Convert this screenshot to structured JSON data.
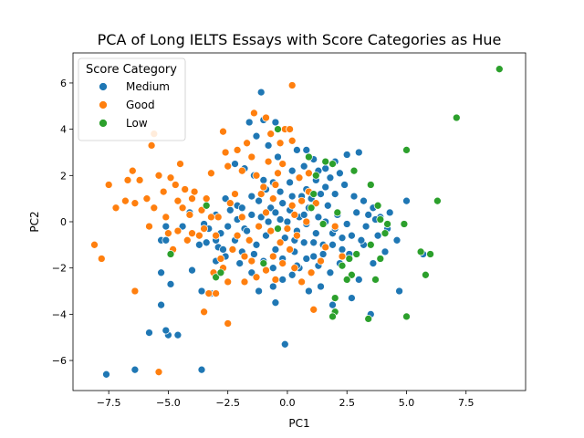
{
  "chart_data": {
    "type": "scatter",
    "title": "PCA of Long IELTS Essays with Score Categories as Hue",
    "xlabel": "PC1",
    "ylabel": "PC2",
    "xlim": [
      -9.0,
      10.0
    ],
    "ylim": [
      -7.3,
      7.3
    ],
    "xticks": [
      -7.5,
      -5.0,
      -2.5,
      0.0,
      2.5,
      5.0,
      7.5
    ],
    "xtick_labels": [
      "−7.5",
      "−5.0",
      "−2.5",
      "0.0",
      "2.5",
      "5.0",
      "7.5"
    ],
    "yticks": [
      -6,
      -4,
      -2,
      0,
      2,
      4,
      6
    ],
    "ytick_labels": [
      "−6",
      "−4",
      "−2",
      "0",
      "2",
      "4",
      "6"
    ],
    "grid": false,
    "legend": {
      "title": "Score Category",
      "placement": "top-left",
      "entries": [
        "Medium",
        "Good",
        "Low"
      ]
    },
    "series": [
      {
        "name": "Medium",
        "color": "#1f77b4",
        "points": [
          [
            -7.6,
            -6.6
          ],
          [
            -6.4,
            -6.4
          ],
          [
            -3.6,
            -6.4
          ],
          [
            -5.0,
            -4.9
          ],
          [
            -4.6,
            -4.9
          ],
          [
            -5.1,
            -4.7
          ],
          [
            -5.8,
            -4.8
          ],
          [
            -5.3,
            -3.6
          ],
          [
            -3.6,
            -3.0
          ],
          [
            -3.2,
            -3.1
          ],
          [
            -0.1,
            -5.3
          ],
          [
            -4.9,
            -2.7
          ],
          [
            -5.3,
            -2.2
          ],
          [
            -4.0,
            -2.1
          ],
          [
            -3.0,
            -1.7
          ],
          [
            -2.9,
            -1.1
          ],
          [
            -2.6,
            -1.5
          ],
          [
            -2.0,
            -1.8
          ],
          [
            -1.9,
            -1.3
          ],
          [
            -1.5,
            -2.2
          ],
          [
            -1.2,
            -3.0
          ],
          [
            -0.6,
            -2.8
          ],
          [
            -0.5,
            -3.5
          ],
          [
            -0.2,
            -2.5
          ],
          [
            0.2,
            -2.3
          ],
          [
            0.5,
            -2.0
          ],
          [
            0.9,
            -3.0
          ],
          [
            1.4,
            -2.8
          ],
          [
            1.9,
            -3.6
          ],
          [
            2.7,
            -3.3
          ],
          [
            3.0,
            -2.5
          ],
          [
            3.5,
            -4.0
          ],
          [
            4.7,
            -3.0
          ],
          [
            5.0,
            0.9
          ],
          [
            5.7,
            -1.4
          ],
          [
            3.0,
            3.0
          ],
          [
            2.5,
            2.9
          ],
          [
            2.0,
            2.6
          ],
          [
            1.6,
            2.3
          ],
          [
            1.1,
            2.7
          ],
          [
            0.8,
            3.1
          ],
          [
            0.4,
            3.1
          ],
          [
            -0.4,
            2.8
          ],
          [
            -0.8,
            3.3
          ],
          [
            -1.3,
            3.7
          ],
          [
            -1.1,
            5.6
          ],
          [
            -1.6,
            4.3
          ],
          [
            -1.0,
            4.4
          ],
          [
            -0.5,
            4.3
          ],
          [
            -2.2,
            2.5
          ],
          [
            -1.8,
            2.3
          ],
          [
            -1.4,
            2.0
          ],
          [
            -2.6,
            1.0
          ],
          [
            -2.1,
            0.7
          ],
          [
            -3.0,
            0.3
          ],
          [
            -3.3,
            -0.3
          ],
          [
            -3.4,
            -0.9
          ],
          [
            -3.7,
            -1.0
          ],
          [
            -5.3,
            -0.8
          ],
          [
            -5.1,
            -0.8
          ],
          [
            -5.1,
            -0.2
          ],
          [
            -4.4,
            -0.2
          ],
          [
            -4.1,
            0.4
          ],
          [
            -3.5,
            -0.1
          ],
          [
            -2.8,
            -0.5
          ],
          [
            -2.2,
            -0.8
          ],
          [
            -1.8,
            -0.3
          ],
          [
            -1.5,
            0.3
          ],
          [
            -1.2,
            0.9
          ],
          [
            -0.9,
            1.4
          ],
          [
            -0.6,
            1.7
          ],
          [
            -0.3,
            1.3
          ],
          [
            0.1,
            1.7
          ],
          [
            0.5,
            1.9
          ],
          [
            0.8,
            1.4
          ],
          [
            1.2,
            1.8
          ],
          [
            1.6,
            1.5
          ],
          [
            2.0,
            1.2
          ],
          [
            2.4,
            1.6
          ],
          [
            2.8,
            1.1
          ],
          [
            3.2,
            0.9
          ],
          [
            3.6,
            0.6
          ],
          [
            3.9,
            0.2
          ],
          [
            4.2,
            -0.3
          ],
          [
            4.6,
            -0.8
          ],
          [
            4.1,
            -1.3
          ],
          [
            3.6,
            -1.8
          ],
          [
            3.2,
            -1.0
          ],
          [
            2.7,
            -0.6
          ],
          [
            2.3,
            -1.2
          ],
          [
            1.9,
            -0.5
          ],
          [
            1.5,
            -1.0
          ],
          [
            1.1,
            -1.5
          ],
          [
            0.7,
            -0.9
          ],
          [
            0.3,
            -1.3
          ],
          [
            -0.1,
            -0.7
          ],
          [
            -0.5,
            -1.2
          ],
          [
            -0.9,
            -0.6
          ],
          [
            -1.3,
            -1.0
          ],
          [
            -1.7,
            -0.4
          ],
          [
            -2.1,
            0.1
          ],
          [
            -1.9,
            0.6
          ],
          [
            -1.5,
            1.1
          ],
          [
            -1.1,
            0.2
          ],
          [
            -0.7,
            0.6
          ],
          [
            -0.3,
            0.1
          ],
          [
            0.1,
            0.5
          ],
          [
            0.5,
            0.2
          ],
          [
            0.9,
            0.6
          ],
          [
            1.3,
            0.2
          ],
          [
            1.7,
            0.7
          ],
          [
            2.1,
            0.3
          ],
          [
            2.5,
            -0.1
          ],
          [
            2.9,
            0.4
          ],
          [
            3.3,
            -0.2
          ],
          [
            3.7,
            0.1
          ],
          [
            3.1,
            -0.8
          ],
          [
            2.6,
            -1.4
          ],
          [
            2.2,
            -1.8
          ],
          [
            1.8,
            -2.2
          ],
          [
            1.3,
            -1.9
          ],
          [
            0.8,
            -1.6
          ],
          [
            0.4,
            -1.9
          ],
          [
            -0.2,
            -1.6
          ],
          [
            -0.6,
            -2.0
          ],
          [
            -1.0,
            -1.7
          ],
          [
            -1.4,
            -1.4
          ],
          [
            -0.8,
            0.0
          ],
          [
            -0.4,
            -0.3
          ],
          [
            0.0,
            0.0
          ],
          [
            0.4,
            -0.4
          ],
          [
            0.8,
            -0.1
          ],
          [
            1.2,
            -0.5
          ],
          [
            1.6,
            0.0
          ],
          [
            2.0,
            -0.3
          ],
          [
            0.2,
            1.1
          ],
          [
            -0.2,
            0.8
          ],
          [
            0.6,
            1.1
          ],
          [
            1.0,
            1.0
          ],
          [
            1.4,
            1.2
          ],
          [
            -0.5,
            0.4
          ],
          [
            0.3,
            -0.8
          ],
          [
            0.7,
            0.3
          ],
          [
            1.1,
            -0.9
          ],
          [
            1.5,
            -1.4
          ],
          [
            1.9,
            -1.0
          ],
          [
            2.3,
            -0.7
          ],
          [
            -1.0,
            1.8
          ],
          [
            -0.4,
            2.1
          ],
          [
            0.2,
            2.2
          ],
          [
            0.7,
            2.4
          ],
          [
            1.3,
            2.2
          ],
          [
            1.8,
            1.9
          ],
          [
            2.2,
            2.1
          ],
          [
            -2.5,
            -0.2
          ],
          [
            -2.4,
            0.5
          ],
          [
            -3.0,
            -0.8
          ],
          [
            -2.7,
            -1.2
          ],
          [
            3.4,
            0.3
          ],
          [
            3.8,
            -0.6
          ],
          [
            4.3,
            0.4
          ]
        ]
      },
      {
        "name": "Good",
        "color": "#ff7f0e",
        "points": [
          [
            -8.1,
            -1.0
          ],
          [
            -7.8,
            -1.6
          ],
          [
            -7.5,
            1.6
          ],
          [
            -7.2,
            0.6
          ],
          [
            -6.8,
            0.9
          ],
          [
            -6.5,
            2.2
          ],
          [
            -6.4,
            0.8
          ],
          [
            -6.4,
            -3.0
          ],
          [
            -6.2,
            1.8
          ],
          [
            -5.9,
            1.0
          ],
          [
            -5.8,
            -0.2
          ],
          [
            -5.6,
            3.8
          ],
          [
            -5.7,
            3.3
          ],
          [
            -5.4,
            2.0
          ],
          [
            -5.2,
            1.3
          ],
          [
            -5.1,
            0.2
          ],
          [
            -4.9,
            1.9
          ],
          [
            -4.7,
            1.6
          ],
          [
            -4.6,
            0.9
          ],
          [
            -4.5,
            2.5
          ],
          [
            -4.3,
            1.4
          ],
          [
            -4.1,
            0.3
          ],
          [
            -4.0,
            -0.5
          ],
          [
            -4.8,
            -1.2
          ],
          [
            -4.6,
            -0.4
          ],
          [
            -4.4,
            0.6
          ],
          [
            -3.9,
            1.3
          ],
          [
            -3.7,
            -0.6
          ],
          [
            -3.5,
            -0.3
          ],
          [
            -3.4,
            1.0
          ],
          [
            -3.2,
            0.2
          ],
          [
            -3.0,
            -0.6
          ],
          [
            -3.3,
            -3.1
          ],
          [
            -3.0,
            -3.1
          ],
          [
            -3.5,
            -3.9
          ],
          [
            -2.5,
            -4.4
          ],
          [
            -2.7,
            -2.0
          ],
          [
            -3.1,
            -2.2
          ],
          [
            -2.3,
            -1.2
          ],
          [
            -2.1,
            -0.6
          ],
          [
            -1.9,
            0.2
          ],
          [
            -2.4,
            0.8
          ],
          [
            -2.9,
            0.2
          ],
          [
            -3.2,
            2.1
          ],
          [
            -2.6,
            3.0
          ],
          [
            -2.1,
            3.1
          ],
          [
            -2.5,
            2.4
          ],
          [
            -1.7,
            3.4
          ],
          [
            -1.5,
            2.8
          ],
          [
            -1.3,
            2.0
          ],
          [
            -1.0,
            1.5
          ],
          [
            -0.8,
            2.6
          ],
          [
            -1.4,
            4.7
          ],
          [
            -0.9,
            4.5
          ],
          [
            -0.7,
            3.8
          ],
          [
            -0.3,
            3.4
          ],
          [
            -0.1,
            4.0
          ],
          [
            0.1,
            4.0
          ],
          [
            0.2,
            3.5
          ],
          [
            0.2,
            5.9
          ],
          [
            -0.4,
            2.1
          ],
          [
            -0.6,
            1.0
          ],
          [
            -0.9,
            0.4
          ],
          [
            -1.2,
            -0.2
          ],
          [
            -1.6,
            -0.8
          ],
          [
            -1.8,
            -1.5
          ],
          [
            -1.3,
            -2.4
          ],
          [
            -0.9,
            -2.1
          ],
          [
            -0.6,
            -1.5
          ],
          [
            -0.3,
            -0.9
          ],
          [
            0.0,
            -0.3
          ],
          [
            0.3,
            0.3
          ],
          [
            0.6,
            0.9
          ],
          [
            0.9,
            1.3
          ],
          [
            1.2,
            0.8
          ],
          [
            0.8,
            0.0
          ],
          [
            0.4,
            -0.6
          ],
          [
            0.1,
            -1.2
          ],
          [
            -0.2,
            -1.8
          ],
          [
            -0.5,
            -2.5
          ],
          [
            0.3,
            -2.0
          ],
          [
            0.6,
            -2.6
          ],
          [
            1.0,
            -2.2
          ],
          [
            1.4,
            -1.7
          ],
          [
            1.1,
            -3.8
          ],
          [
            1.6,
            -1.1
          ],
          [
            2.0,
            -0.2
          ],
          [
            2.3,
            -1.5
          ],
          [
            -2.7,
            3.9
          ],
          [
            -5.4,
            -6.5
          ],
          [
            -5.0,
            -0.5
          ],
          [
            -4.2,
            -0.8
          ],
          [
            -4.0,
            1.0
          ],
          [
            -3.6,
            0.5
          ],
          [
            -2.2,
            1.2
          ],
          [
            -1.9,
            2.2
          ],
          [
            -1.1,
            1.2
          ],
          [
            -0.5,
            1.6
          ],
          [
            -0.2,
            2.5
          ],
          [
            0.5,
            1.9
          ],
          [
            0.9,
            2.1
          ],
          [
            -2.8,
            -1.6
          ],
          [
            -1.5,
            -1.7
          ],
          [
            -0.7,
            -0.4
          ],
          [
            0.2,
            0.7
          ],
          [
            -2.5,
            -2.6
          ],
          [
            -1.8,
            -2.6
          ],
          [
            -5.6,
            0.6
          ],
          [
            -6.7,
            1.8
          ]
        ]
      },
      {
        "name": "Low",
        "color": "#2ca02c",
        "points": [
          [
            8.9,
            6.6
          ],
          [
            7.1,
            4.5
          ],
          [
            5.0,
            3.1
          ],
          [
            6.3,
            0.9
          ],
          [
            4.9,
            -0.1
          ],
          [
            3.8,
            0.7
          ],
          [
            3.9,
            0.1
          ],
          [
            4.2,
            -0.1
          ],
          [
            4.1,
            -0.5
          ],
          [
            3.5,
            -1.0
          ],
          [
            2.9,
            -1.4
          ],
          [
            2.6,
            -1.6
          ],
          [
            2.3,
            -1.9
          ],
          [
            2.7,
            -2.3
          ],
          [
            2.5,
            -2.5
          ],
          [
            2.0,
            -3.3
          ],
          [
            2.0,
            -3.9
          ],
          [
            1.9,
            -4.1
          ],
          [
            3.4,
            -4.2
          ],
          [
            5.0,
            -4.1
          ],
          [
            3.7,
            -2.5
          ],
          [
            5.6,
            -1.3
          ],
          [
            6.0,
            -1.4
          ],
          [
            5.8,
            -2.3
          ],
          [
            3.9,
            -1.6
          ],
          [
            3.5,
            1.6
          ],
          [
            2.8,
            2.2
          ],
          [
            1.9,
            2.5
          ],
          [
            1.6,
            2.6
          ],
          [
            1.2,
            2.0
          ],
          [
            0.9,
            2.8
          ],
          [
            1.1,
            1.2
          ],
          [
            1.0,
            0.6
          ],
          [
            2.1,
            0.4
          ],
          [
            -1.0,
            -1.8
          ],
          [
            -0.4,
            -0.3
          ],
          [
            -3.0,
            -2.4
          ],
          [
            -2.8,
            -2.2
          ],
          [
            -4.9,
            -1.4
          ],
          [
            -3.4,
            0.7
          ],
          [
            -0.4,
            4.0
          ],
          [
            1.5,
            -0.1
          ]
        ]
      }
    ]
  }
}
